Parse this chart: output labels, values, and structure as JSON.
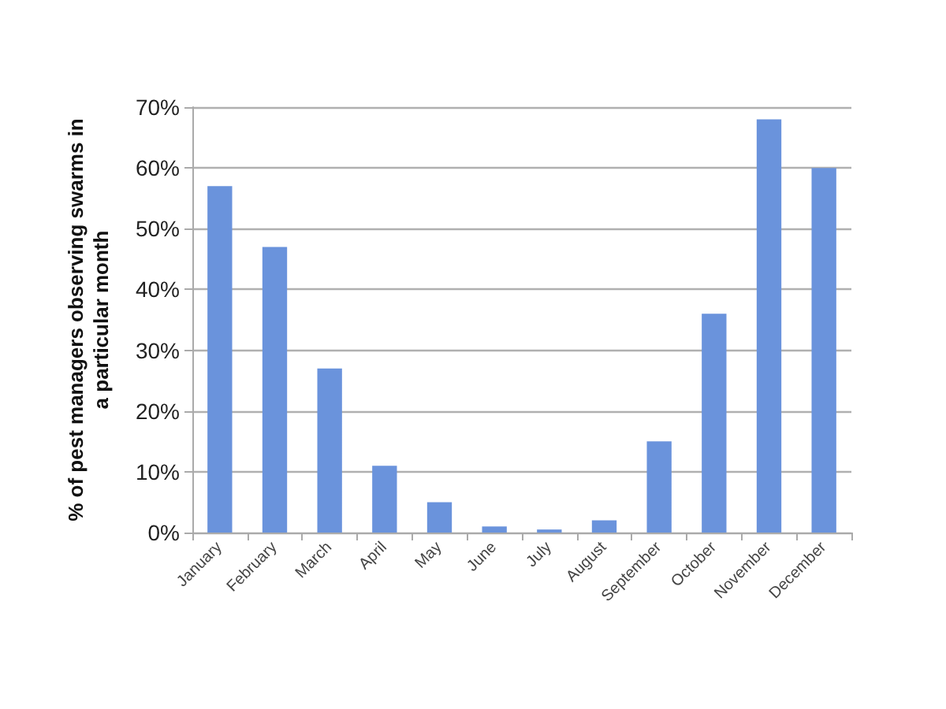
{
  "chart_data": {
    "type": "bar",
    "ylabel": "% of pest managers observing swarms in a particular month",
    "categories": [
      "January",
      "February",
      "March",
      "April",
      "May",
      "June",
      "July",
      "August",
      "September",
      "October",
      "November",
      "December"
    ],
    "values": [
      57,
      47,
      27,
      11,
      5,
      1,
      0.5,
      2,
      15,
      36,
      68,
      60
    ],
    "color": "#6a93dc",
    "ylim": [
      0,
      70
    ],
    "yticks": [
      {
        "value": 0,
        "label": "0%"
      },
      {
        "value": 10,
        "label": "10%"
      },
      {
        "value": 20,
        "label": "20%"
      },
      {
        "value": 30,
        "label": "30%"
      },
      {
        "value": 40,
        "label": "40%"
      },
      {
        "value": 50,
        "label": "50%"
      },
      {
        "value": 60,
        "label": "60%"
      },
      {
        "value": 70,
        "label": "70%"
      }
    ],
    "grid": "y"
  }
}
